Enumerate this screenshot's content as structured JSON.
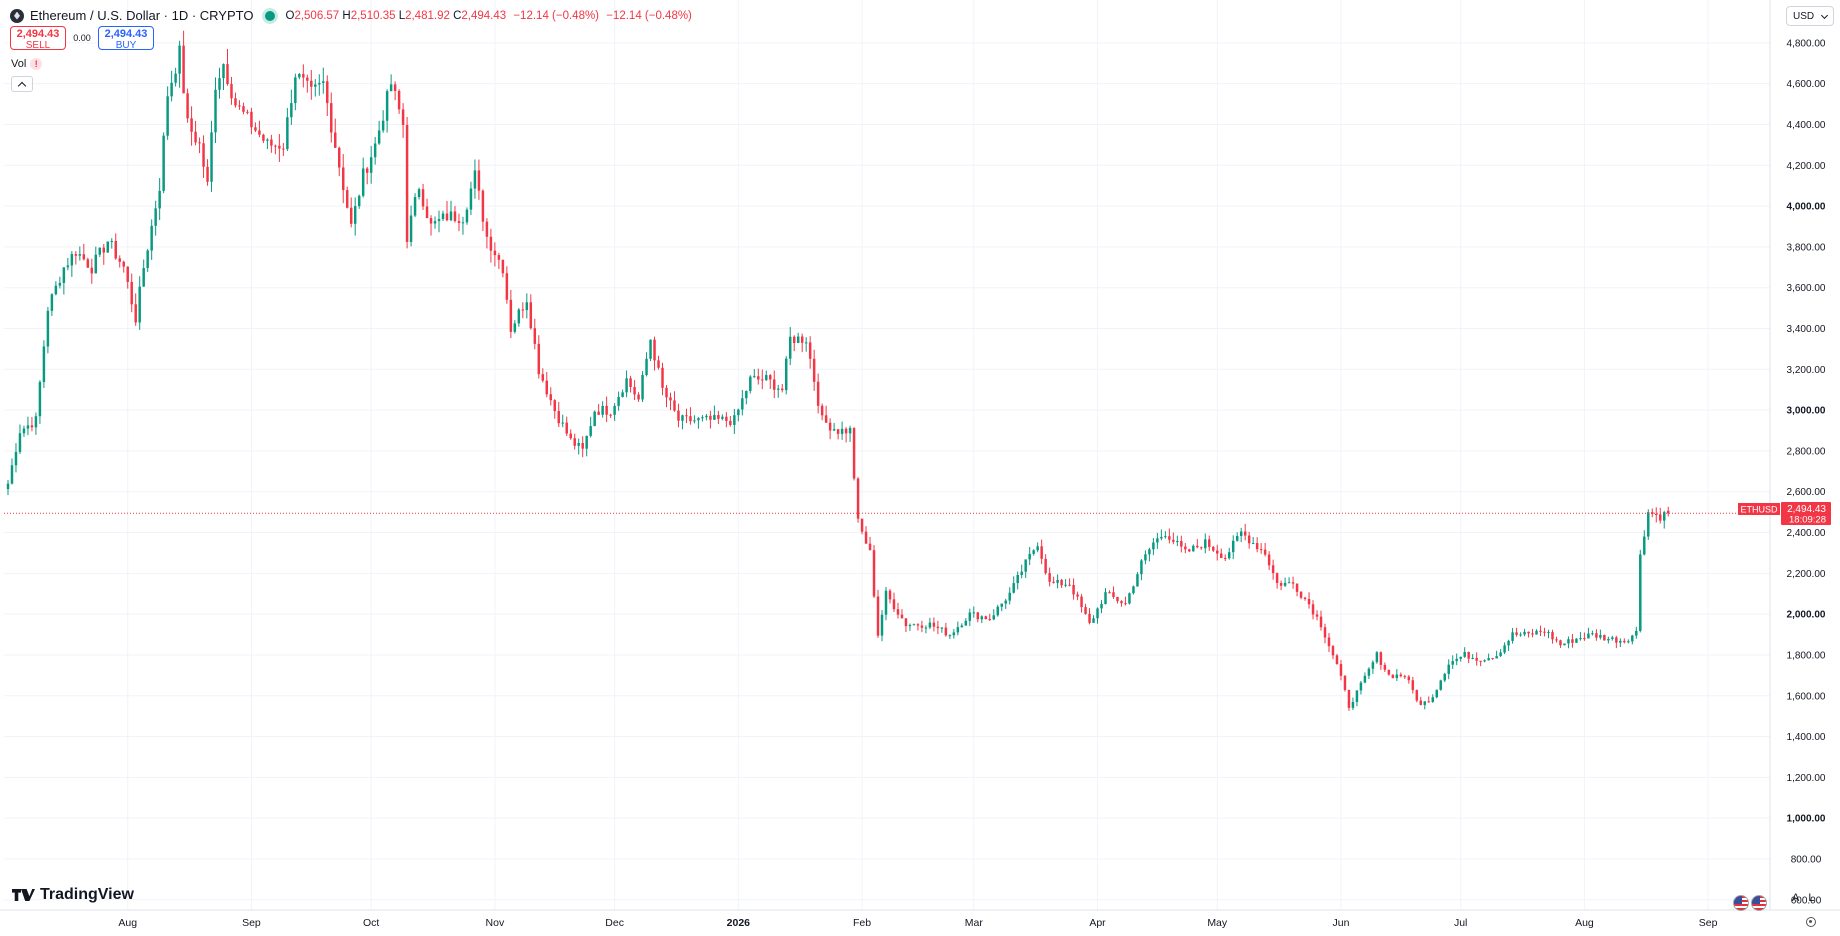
{
  "header": {
    "symbol_title": "Ethereum / U.S. Dollar · 1D · CRYPTO",
    "open_label": "O",
    "open_value": "2,506.57",
    "high_label": "H",
    "high_value": "2,510.35",
    "low_label": "L",
    "low_value": "2,481.92",
    "close_label": "C",
    "close_value": "2,494.43",
    "change": "−12.14 (−0.48%)",
    "change2": "−12.14 (−0.48%)"
  },
  "trade": {
    "sell_price": "2,494.43",
    "sell_label": "SELL",
    "spread": "0.00",
    "buy_price": "2,494.43",
    "buy_label": "BUY"
  },
  "indicators": {
    "vol_label": "Vol",
    "vol_warning": "!"
  },
  "currency": "USD",
  "scale_buttons": {
    "auto": "A",
    "log": "L"
  },
  "branding": {
    "logo_text": "TradingView"
  },
  "price_tag": {
    "symbol": "ETHUSD",
    "price": "2,494.43",
    "countdown": "18:09:28"
  },
  "colors": {
    "up": "#089981",
    "down": "#f23645",
    "grid": "#f0f3fa",
    "axis_text": "#131722"
  },
  "chart_data": {
    "type": "candlestick",
    "symbol": "ETHUSD",
    "interval": "1D",
    "ylim": [
      550,
      5010
    ],
    "y_ticks": [
      "600.00",
      "800.00",
      "1,000.00",
      "1,200.00",
      "1,400.00",
      "1,600.00",
      "1,800.00",
      "2,000.00",
      "2,200.00",
      "2,400.00",
      "2,600.00",
      "2,800.00",
      "3,000.00",
      "3,200.00",
      "3,400.00",
      "3,600.00",
      "3,800.00",
      "4,000.00",
      "4,200.00",
      "4,400.00",
      "4,600.00",
      "4,800.00"
    ],
    "y_tick_values": [
      600,
      800,
      1000,
      1200,
      1400,
      1600,
      1800,
      2000,
      2200,
      2400,
      2600,
      2800,
      3000,
      3200,
      3400,
      3600,
      3800,
      4000,
      4200,
      4400,
      4600,
      4800
    ],
    "y_bold_ticks": [
      "1,000.00",
      "2,000.00",
      "3,000.00",
      "4,000.00"
    ],
    "x_ticks": [
      "Aug",
      "Sep",
      "Oct",
      "Nov",
      "Dec",
      "2026",
      "Feb",
      "Mar",
      "Apr",
      "May",
      "Jun",
      "Jul",
      "Aug",
      "Sep"
    ],
    "x_tick_dates": [
      "2025-08-01",
      "2025-09-01",
      "2025-10-01",
      "2025-11-01",
      "2025-12-01",
      "2026-01-01",
      "2026-02-01",
      "2026-03-01",
      "2026-04-01",
      "2026-05-01",
      "2026-06-01",
      "2026-07-01",
      "2026-08-01",
      "2026-09-01"
    ],
    "x_bold_ticks": [
      "2026"
    ],
    "x_range": [
      "2025-07-01",
      "2026-09-16"
    ],
    "last_price": 2494.43,
    "close_anchors": [
      [
        "2025-07-02",
        2640
      ],
      [
        "2025-07-05",
        2900
      ],
      [
        "2025-07-09",
        2950
      ],
      [
        "2025-07-12",
        3500
      ],
      [
        "2025-07-16",
        3700
      ],
      [
        "2025-07-19",
        3780
      ],
      [
        "2025-07-23",
        3700
      ],
      [
        "2025-07-27",
        3830
      ],
      [
        "2025-07-31",
        3700
      ],
      [
        "2025-08-03",
        3450
      ],
      [
        "2025-08-05",
        3700
      ],
      [
        "2025-08-09",
        4100
      ],
      [
        "2025-08-11",
        4550
      ],
      [
        "2025-08-14",
        4750
      ],
      [
        "2025-08-16",
        4400
      ],
      [
        "2025-08-19",
        4300
      ],
      [
        "2025-08-21",
        4100
      ],
      [
        "2025-08-23",
        4600
      ],
      [
        "2025-08-25",
        4700
      ],
      [
        "2025-08-28",
        4500
      ],
      [
        "2025-09-01",
        4400
      ],
      [
        "2025-09-05",
        4300
      ],
      [
        "2025-09-09",
        4300
      ],
      [
        "2025-09-12",
        4650
      ],
      [
        "2025-09-16",
        4550
      ],
      [
        "2025-09-19",
        4600
      ],
      [
        "2025-09-23",
        4200
      ],
      [
        "2025-09-26",
        3900
      ],
      [
        "2025-09-29",
        4150
      ],
      [
        "2025-10-02",
        4300
      ],
      [
        "2025-10-06",
        4600
      ],
      [
        "2025-10-09",
        4400
      ],
      [
        "2025-10-10",
        3850
      ],
      [
        "2025-10-13",
        4100
      ],
      [
        "2025-10-16",
        3900
      ],
      [
        "2025-10-20",
        3950
      ],
      [
        "2025-10-24",
        3950
      ],
      [
        "2025-10-27",
        4150
      ],
      [
        "2025-10-30",
        3850
      ],
      [
        "2025-11-03",
        3700
      ],
      [
        "2025-11-05",
        3400
      ],
      [
        "2025-11-09",
        3550
      ],
      [
        "2025-11-12",
        3200
      ],
      [
        "2025-11-16",
        3000
      ],
      [
        "2025-11-20",
        2850
      ],
      [
        "2025-11-23",
        2800
      ],
      [
        "2025-11-26",
        3000
      ],
      [
        "2025-11-30",
        3000
      ],
      [
        "2025-12-04",
        3150
      ],
      [
        "2025-12-07",
        3050
      ],
      [
        "2025-12-10",
        3350
      ],
      [
        "2025-12-13",
        3100
      ],
      [
        "2025-12-17",
        2950
      ],
      [
        "2025-12-20",
        2950
      ],
      [
        "2025-12-25",
        2950
      ],
      [
        "2025-12-31",
        2950
      ],
      [
        "2026-01-04",
        3150
      ],
      [
        "2026-01-08",
        3150
      ],
      [
        "2026-01-12",
        3100
      ],
      [
        "2026-01-14",
        3350
      ],
      [
        "2026-01-18",
        3350
      ],
      [
        "2026-01-22",
        2950
      ],
      [
        "2026-01-26",
        2900
      ],
      [
        "2026-01-29",
        2900
      ],
      [
        "2026-01-31",
        2450
      ],
      [
        "2026-02-03",
        2300
      ],
      [
        "2026-02-05",
        1900
      ],
      [
        "2026-02-07",
        2100
      ],
      [
        "2026-02-12",
        1950
      ],
      [
        "2026-02-18",
        1950
      ],
      [
        "2026-02-23",
        1900
      ],
      [
        "2026-02-28",
        2000
      ],
      [
        "2026-03-05",
        1980
      ],
      [
        "2026-03-10",
        2100
      ],
      [
        "2026-03-14",
        2250
      ],
      [
        "2026-03-17",
        2350
      ],
      [
        "2026-03-20",
        2150
      ],
      [
        "2026-03-25",
        2150
      ],
      [
        "2026-03-30",
        1950
      ],
      [
        "2026-04-03",
        2100
      ],
      [
        "2026-04-08",
        2050
      ],
      [
        "2026-04-12",
        2250
      ],
      [
        "2026-04-15",
        2350
      ],
      [
        "2026-04-18",
        2400
      ],
      [
        "2026-04-23",
        2300
      ],
      [
        "2026-04-28",
        2350
      ],
      [
        "2026-05-03",
        2280
      ],
      [
        "2026-05-07",
        2400
      ],
      [
        "2026-05-10",
        2350
      ],
      [
        "2026-05-13",
        2300
      ],
      [
        "2026-05-16",
        2150
      ],
      [
        "2026-05-20",
        2150
      ],
      [
        "2026-05-24",
        2050
      ],
      [
        "2026-05-27",
        1950
      ],
      [
        "2026-05-31",
        1750
      ],
      [
        "2026-06-03",
        1550
      ],
      [
        "2026-06-06",
        1650
      ],
      [
        "2026-06-10",
        1800
      ],
      [
        "2026-06-13",
        1700
      ],
      [
        "2026-06-17",
        1700
      ],
      [
        "2026-06-21",
        1550
      ],
      [
        "2026-06-24",
        1600
      ],
      [
        "2026-06-28",
        1760
      ],
      [
        "2026-07-02",
        1800
      ],
      [
        "2026-07-06",
        1780
      ],
      [
        "2026-07-10",
        1800
      ],
      [
        "2026-07-14",
        1900
      ],
      [
        "2026-07-18",
        1900
      ],
      [
        "2026-07-22",
        1920
      ],
      [
        "2026-07-26",
        1850
      ],
      [
        "2026-07-30",
        1880
      ],
      [
        "2026-08-03",
        1900
      ],
      [
        "2026-08-07",
        1880
      ],
      [
        "2026-08-11",
        1870
      ],
      [
        "2026-08-14",
        1910
      ],
      [
        "2026-08-15",
        2300
      ],
      [
        "2026-08-17",
        2500
      ],
      [
        "2026-08-20",
        2480
      ],
      [
        "2026-08-22",
        2494.43
      ]
    ]
  }
}
